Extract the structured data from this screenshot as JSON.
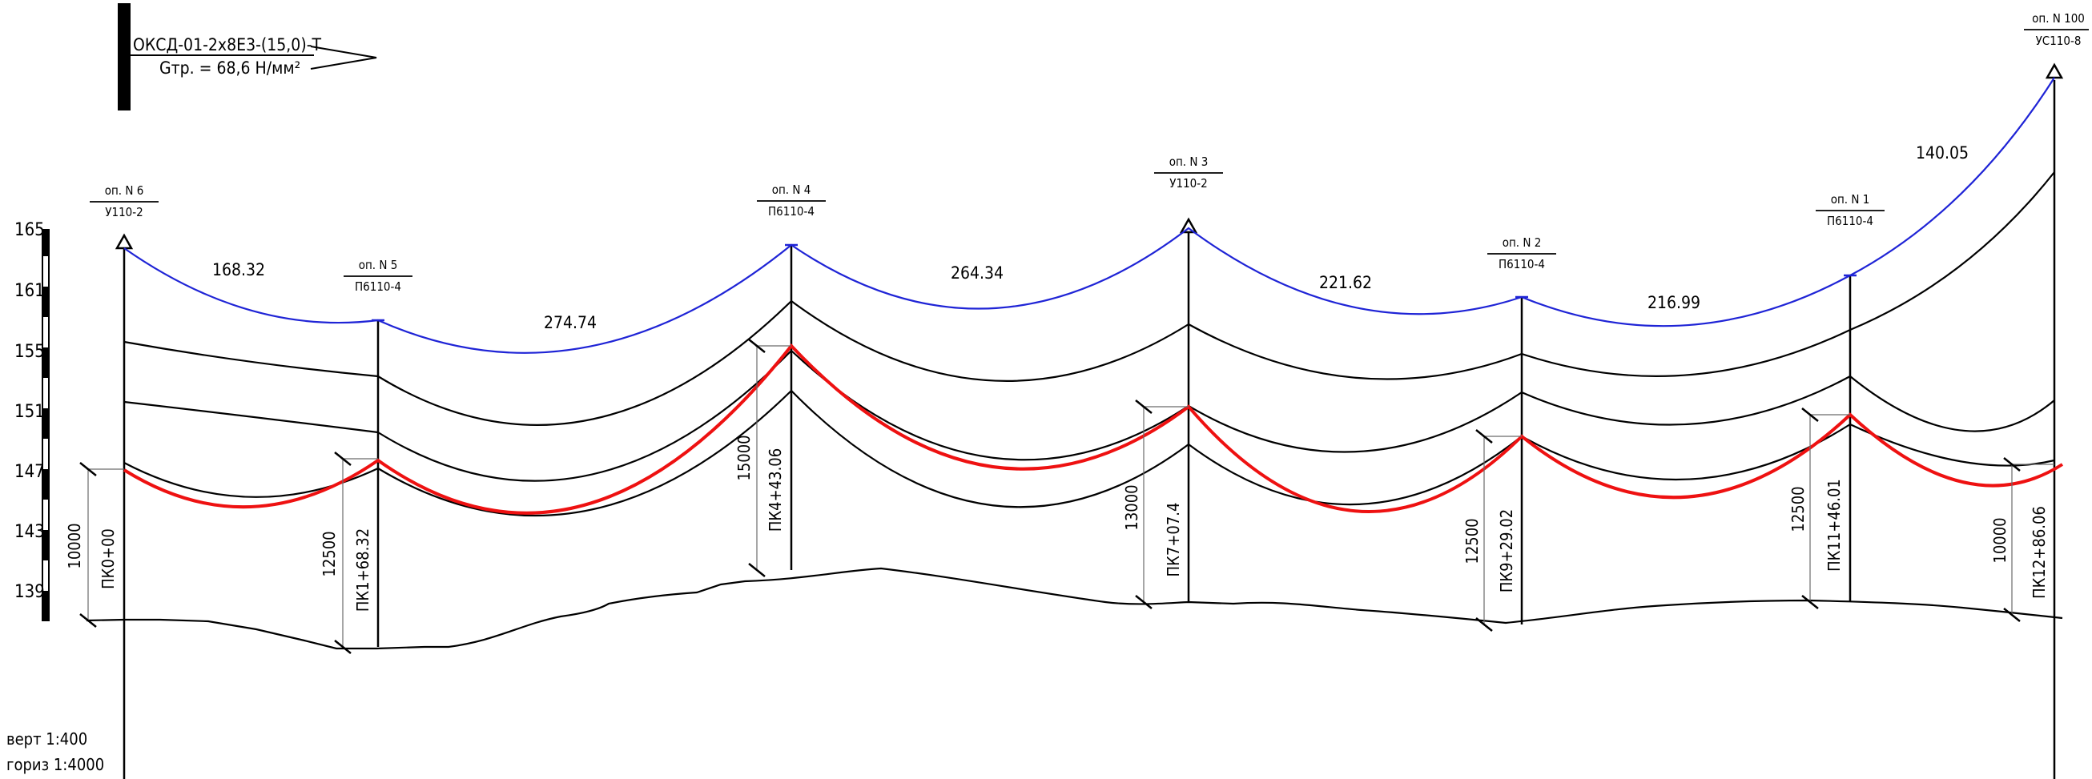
{
  "header": {
    "cable_spec": "ОКСД-01-2х8Е3-(15,0)-Т",
    "tension": "Gтр. = 68,6 Н/мм²"
  },
  "scale_notes": {
    "vertical": "верт 1:400",
    "horizontal": "гориз 1:4000"
  },
  "elevation_ticks": [
    "165",
    "161",
    "155",
    "151",
    "147",
    "143",
    "139"
  ],
  "supports": [
    {
      "name": "оп. N 6",
      "type": "У110-2",
      "picket": "ПК0+00",
      "height": "10000"
    },
    {
      "name": "оп. N 5",
      "type": "П6110-4",
      "picket": "ПК1+68.32",
      "height": "12500"
    },
    {
      "name": "оп. N 4",
      "type": "П6110-4",
      "picket": "ПК4+43.06",
      "height": "15000"
    },
    {
      "name": "оп. N 3",
      "type": "У110-2",
      "picket": "ПК7+07.4",
      "height": "13000"
    },
    {
      "name": "оп. N 2",
      "type": "П6110-4",
      "picket": "ПК9+29.02",
      "height": "12500"
    },
    {
      "name": "оп. N 1",
      "type": "П6110-4",
      "picket": "ПК11+46.01",
      "height": "12500"
    },
    {
      "name": "оп. N 100",
      "type": "УС110-8",
      "picket": "ПК12+86.06",
      "height": "10000"
    }
  ],
  "spans": [
    "168.32",
    "274.74",
    "264.34",
    "221.62",
    "216.99",
    "140.05"
  ],
  "colors": {
    "top_wire": "#1f24d6",
    "cable": "#ee1111",
    "lines": "#000000",
    "guides": "#6b6b6b"
  }
}
